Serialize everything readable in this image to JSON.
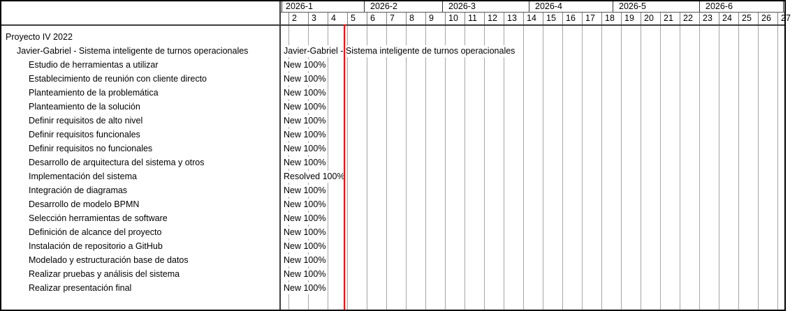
{
  "timeline": {
    "months": [
      {
        "label": "2026-1"
      },
      {
        "label": "2026-2"
      },
      {
        "label": "2026-3"
      },
      {
        "label": "2026-4"
      },
      {
        "label": "2026-5"
      },
      {
        "label": "2026-6"
      }
    ],
    "weeks": [
      "2",
      "3",
      "4",
      "5",
      "6",
      "7",
      "8",
      "9",
      "10",
      "11",
      "12",
      "13",
      "14",
      "15",
      "16",
      "17",
      "18",
      "19",
      "20",
      "21",
      "22",
      "23",
      "24",
      "25",
      "26",
      "27"
    ]
  },
  "tasks": [
    {
      "name": "Proyecto IV 2022",
      "indent": 0,
      "chart_label": ""
    },
    {
      "name": "Javier-Gabriel - Sistema inteligente de turnos operacionales",
      "indent": 1,
      "chart_label": "Javier-Gabriel - Sistema inteligente de turnos operacionales"
    },
    {
      "name": "Estudio de herramientas a utilizar",
      "indent": 2,
      "chart_label": "New 100%"
    },
    {
      "name": "Establecimiento de reunión con cliente directo",
      "indent": 2,
      "chart_label": "New 100%"
    },
    {
      "name": "Planteamiento de la problemática",
      "indent": 2,
      "chart_label": "New 100%"
    },
    {
      "name": "Planteamiento de la solución",
      "indent": 2,
      "chart_label": "New 100%"
    },
    {
      "name": "Definir requisitos de alto nivel",
      "indent": 2,
      "chart_label": "New 100%"
    },
    {
      "name": "Definir requisitos funcionales",
      "indent": 2,
      "chart_label": "New 100%"
    },
    {
      "name": "Definir requisitos no funcionales",
      "indent": 2,
      "chart_label": "New 100%"
    },
    {
      "name": "Desarrollo de arquitectura del sistema y otros",
      "indent": 2,
      "chart_label": "New 100%"
    },
    {
      "name": "Implementación del sistema",
      "indent": 2,
      "chart_label": "Resolved 100%"
    },
    {
      "name": "Integración de diagramas",
      "indent": 2,
      "chart_label": "New 100%"
    },
    {
      "name": "Desarrollo de modelo BPMN",
      "indent": 2,
      "chart_label": "New 100%"
    },
    {
      "name": "Selección herramientas de software",
      "indent": 2,
      "chart_label": "New 100%"
    },
    {
      "name": "Definición de alcance del proyecto",
      "indent": 2,
      "chart_label": "New 100%"
    },
    {
      "name": "Instalación de repositorio a GitHub",
      "indent": 2,
      "chart_label": "New 100%"
    },
    {
      "name": "Modelado y estructuración base de datos",
      "indent": 2,
      "chart_label": "New 100%"
    },
    {
      "name": "Realizar pruebas y análisis del sistema",
      "indent": 2,
      "chart_label": "New 100%"
    },
    {
      "name": "Realizar presentación final",
      "indent": 2,
      "chart_label": "New 100%"
    }
  ],
  "colors": {
    "outer_border": "#000000",
    "panel_border": "#3d3d3d",
    "month_separator": "#333333",
    "week_separator": "#808080",
    "grid_line": "#a6a6a6",
    "today_line": "#ff0000",
    "text": "#000000",
    "background": "#ffffff"
  }
}
